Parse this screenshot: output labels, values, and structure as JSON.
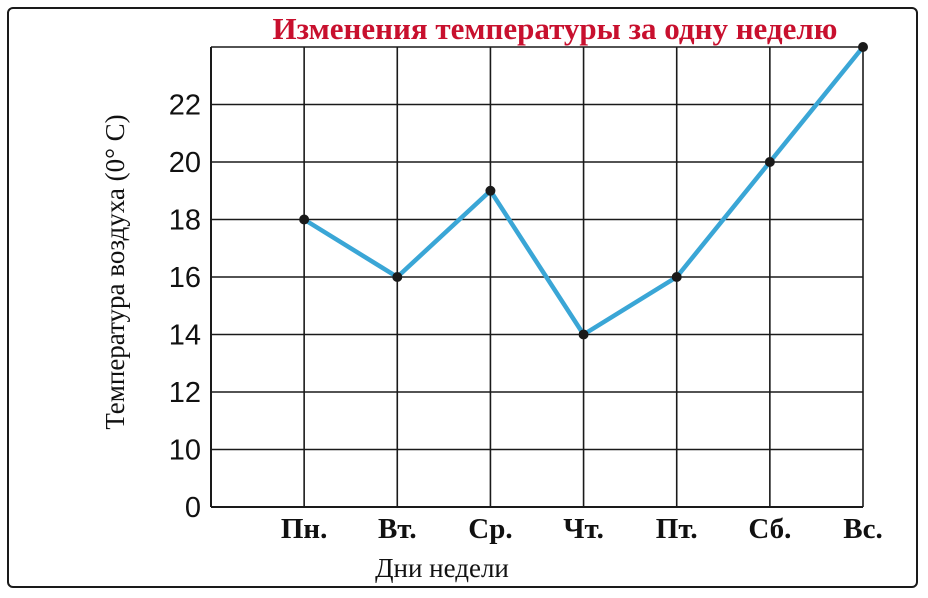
{
  "chart_data": {
    "type": "line",
    "title": "Изменения температуры за одну неделю",
    "xlabel": "Дни недели",
    "ylabel": "Температура воздуха (0° C)",
    "categories": [
      "Пн.",
      "Вт.",
      "Ср.",
      "Чт.",
      "Пт.",
      "Сб.",
      "Вс."
    ],
    "series": [
      {
        "values": [
          18,
          16,
          19,
          14,
          16,
          20,
          24
        ]
      }
    ],
    "y_ticks": [
      "0",
      "10",
      "12",
      "14",
      "16",
      "18",
      "20",
      "22"
    ],
    "grid": true,
    "line_color": "#3aa6d6",
    "marker_color": "#1a1a1a",
    "title_color": "#c8102e"
  }
}
